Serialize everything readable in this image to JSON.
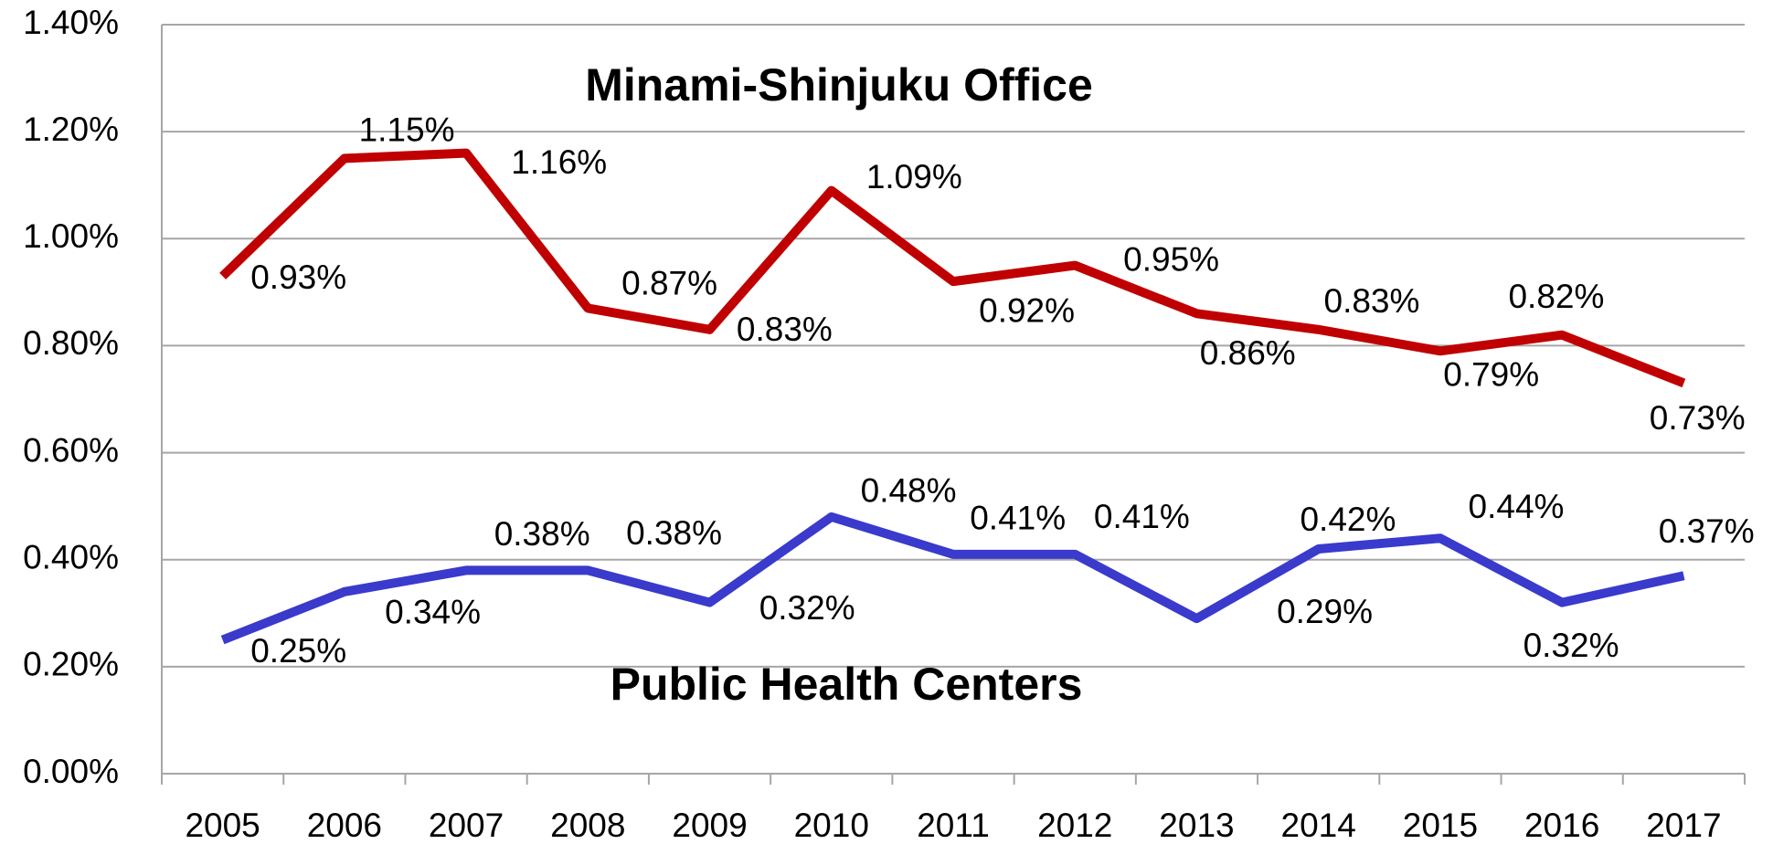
{
  "chart_data": {
    "type": "line",
    "categories": [
      "2005",
      "2006",
      "2007",
      "2008",
      "2009",
      "2010",
      "2011",
      "2012",
      "2013",
      "2014",
      "2015",
      "2016",
      "2017"
    ],
    "series": [
      {
        "name": "Minami-Shinjuku Office",
        "color": "#c00000",
        "values": [
          0.93,
          1.15,
          1.16,
          0.87,
          0.83,
          1.09,
          0.92,
          0.95,
          0.86,
          0.83,
          0.79,
          0.82,
          0.73
        ],
        "value_labels": [
          "0.93%",
          "1.15%",
          "1.16%",
          "0.87%",
          "0.83%",
          "1.09%",
          "0.92%",
          "0.95%",
          "0.86%",
          "0.83%",
          "0.79%",
          "0.82%",
          "0.73%"
        ]
      },
      {
        "name": "Public Health Centers",
        "color": "#3a3acc",
        "values": [
          0.25,
          0.34,
          0.38,
          0.38,
          0.32,
          0.48,
          0.41,
          0.41,
          0.29,
          0.42,
          0.44,
          0.32,
          0.37
        ],
        "value_labels": [
          "0.25%",
          "0.34%",
          "0.38%",
          "0.38%",
          "0.32%",
          "0.48%",
          "0.41%",
          "0.41%",
          "0.29%",
          "0.42%",
          "0.44%",
          "0.32%",
          "0.37%"
        ]
      }
    ],
    "ylim": [
      0,
      1.4
    ],
    "yticks": [
      {
        "value": 0,
        "label": "0.00%"
      },
      {
        "value": 0.2,
        "label": "0.20%"
      },
      {
        "value": 0.4,
        "label": "0.40%"
      },
      {
        "value": 0.6,
        "label": "0.60%"
      },
      {
        "value": 0.8,
        "label": "0.80%"
      },
      {
        "value": 1.0,
        "label": "1.00%"
      },
      {
        "value": 1.2,
        "label": "1.20%"
      },
      {
        "value": 1.4,
        "label": "1.40%"
      }
    ],
    "grid": true
  }
}
